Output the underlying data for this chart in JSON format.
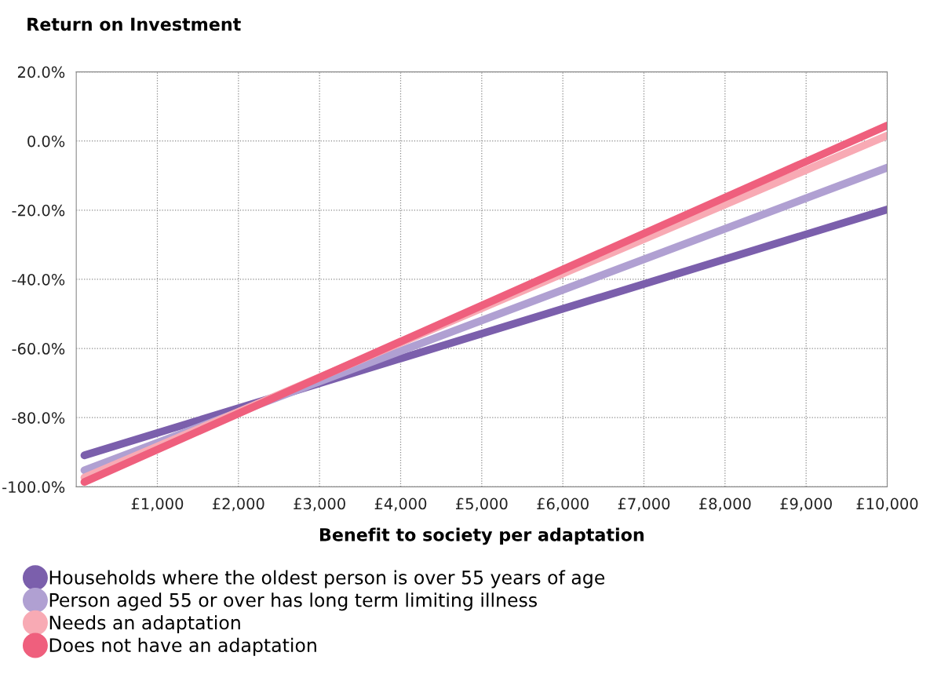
{
  "chart_data": {
    "type": "line",
    "title": "Return on Investment",
    "xlabel": "Benefit to society per adaptation",
    "xlim": [
      0,
      10000
    ],
    "xticks": [
      {
        "value": 1000,
        "label": "£1,000"
      },
      {
        "value": 2000,
        "label": "£2,000"
      },
      {
        "value": 3000,
        "label": "£3,000"
      },
      {
        "value": 4000,
        "label": "£4,000"
      },
      {
        "value": 5000,
        "label": "£5,000"
      },
      {
        "value": 6000,
        "label": "£6,000"
      },
      {
        "value": 7000,
        "label": "£7,000"
      },
      {
        "value": 8000,
        "label": "£8,000"
      },
      {
        "value": 9000,
        "label": "£9,000"
      },
      {
        "value": 10000,
        "label": "£10,000"
      }
    ],
    "ylim": [
      -100,
      20
    ],
    "yticks": [
      {
        "value": -100,
        "label": "-100.0%"
      },
      {
        "value": -80,
        "label": "-80.0%"
      },
      {
        "value": -60,
        "label": "-60.0%"
      },
      {
        "value": -40,
        "label": "-40.0%"
      },
      {
        "value": -20,
        "label": "-20.0%"
      },
      {
        "value": 0,
        "label": "0.0%"
      },
      {
        "value": 20,
        "label": "20.0%"
      }
    ],
    "grid": true,
    "legend": "bottom",
    "marker": "none",
    "line_style": "solid",
    "x": [
      100,
      10000
    ],
    "series": [
      {
        "name": "Households where the oldest person is over 55 years of age",
        "color": "#7b5fac",
        "values": [
          -90.9,
          -19.8
        ]
      },
      {
        "name": "Person aged 55 or over has long term limiting illness",
        "color": "#b0a0d2",
        "values": [
          -95.2,
          -7.7
        ]
      },
      {
        "name": "Needs an adaptation",
        "color": "#f8aab4",
        "values": [
          -97.3,
          1.6
        ]
      },
      {
        "name": "Does not have an adaptation",
        "color": "#ef5f7d",
        "values": [
          -98.6,
          4.5
        ]
      }
    ]
  }
}
